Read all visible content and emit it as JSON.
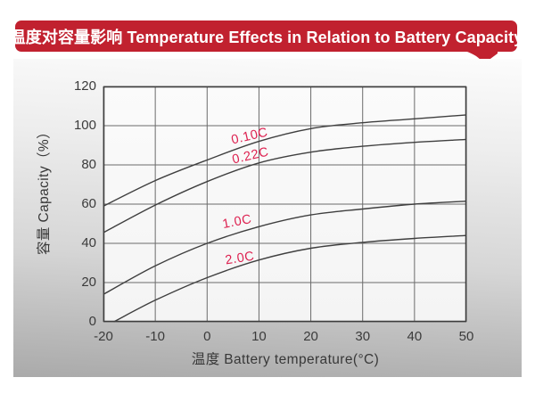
{
  "banner": {
    "title": "温度对容量影响 Temperature Effects in Relation to Battery Capacity",
    "bg_color": "#c1212f",
    "text_color": "#ffffff"
  },
  "chart_data": {
    "type": "line",
    "title": "温度对容量影响 Temperature Effects in Relation to Battery Capacity",
    "xlabel": "温度  Battery temperature(°C)",
    "ylabel": "容量 Capacity（%）",
    "xlim": [
      -20,
      50
    ],
    "ylim": [
      0,
      120
    ],
    "x_ticks": [
      -20,
      -10,
      0,
      10,
      20,
      30,
      40,
      50
    ],
    "y_ticks": [
      0,
      20,
      40,
      60,
      80,
      100,
      120
    ],
    "grid": true,
    "legend_position": "inline-curve-labels",
    "series": [
      {
        "name": "0.10C",
        "points": [
          [
            -20,
            59
          ],
          [
            -10,
            72
          ],
          [
            0,
            82.5
          ],
          [
            10,
            92
          ],
          [
            20,
            98.5
          ],
          [
            30,
            101.5
          ],
          [
            40,
            103.5
          ],
          [
            50,
            105.5
          ]
        ],
        "label_pos": {
          "x": 8.2,
          "y": 94.5,
          "rot": -13
        }
      },
      {
        "name": "0.22C",
        "points": [
          [
            -20,
            45.5
          ],
          [
            -10,
            59.5
          ],
          [
            0,
            71.5
          ],
          [
            10,
            81
          ],
          [
            20,
            86.5
          ],
          [
            30,
            89.5
          ],
          [
            40,
            91.5
          ],
          [
            50,
            93
          ]
        ],
        "label_pos": {
          "x": 8.3,
          "y": 84.5,
          "rot": -13
        }
      },
      {
        "name": "1.0C",
        "points": [
          [
            -20,
            14
          ],
          [
            -10,
            28.5
          ],
          [
            0,
            40
          ],
          [
            10,
            48.5
          ],
          [
            20,
            54.5
          ],
          [
            30,
            57.5
          ],
          [
            40,
            60
          ],
          [
            50,
            61.5
          ]
        ],
        "label_pos": {
          "x": 5.8,
          "y": 51,
          "rot": -11
        }
      },
      {
        "name": "2.0C",
        "points": [
          [
            -18,
            0
          ],
          [
            -10,
            11
          ],
          [
            0,
            22.5
          ],
          [
            10,
            31.5
          ],
          [
            20,
            37.5
          ],
          [
            30,
            40.5
          ],
          [
            40,
            42.5
          ],
          [
            50,
            44
          ]
        ],
        "label_pos": {
          "x": 6.4,
          "y": 32.5,
          "rot": -9
        }
      }
    ],
    "colors": {
      "curve": "#3f3f3f",
      "series_label": "#dd2150",
      "grid": "#6b6b6b",
      "border": "#3d3d3d",
      "tick_text": "#3b3b3b"
    }
  }
}
